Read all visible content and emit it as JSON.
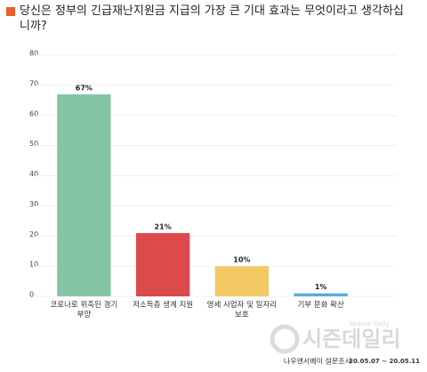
{
  "chart_data": {
    "type": "bar",
    "title": "당신은 정부의 긴급재난지원금 지급의 가장 큰 기대 효과는 무엇이라고 생각하십니까?",
    "categories": [
      "코로나로 위축된 경기 부양",
      "저소득층 생계 지원",
      "영세 사업자 및 일자리 보호",
      "기부 문화 확산"
    ],
    "values": [
      67,
      21,
      10,
      1
    ],
    "value_labels": [
      "67%",
      "21%",
      "10%",
      "1%"
    ],
    "colors": [
      "#86c5a4",
      "#dc4a4b",
      "#f2c962",
      "#5aaadd"
    ],
    "ylim": [
      0,
      80
    ],
    "yticks": [
      0,
      10,
      20,
      30,
      40,
      50,
      60,
      70,
      80
    ],
    "grid": true,
    "source": "나우앤서베이 설문조사",
    "period": "20.05.07 ~ 20.05.11",
    "watermark": "시즌데일리",
    "watermark_sub": "Season Daily"
  }
}
